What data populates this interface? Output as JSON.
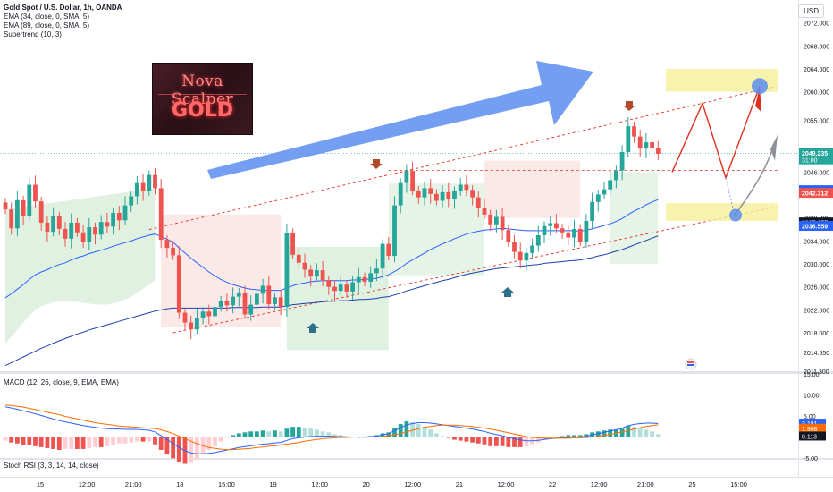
{
  "legend": {
    "symbol": "Gold Spot / U.S. Dollar, 1h, OANDA",
    "ema1": "EMA (34, close, 0, SMA, 5)",
    "ema2": "EMA (89, close, 0, SMA, 5)",
    "supertrend": "Supertrend (10, 3)"
  },
  "macd_label": "MACD (12, 26, close, 9, EMA, EMA)",
  "stoch_label": "Stoch RSI (3, 3, 14, 14, close)",
  "currency": "USD",
  "logo": {
    "line1": "Nova Scalper",
    "line2": "GOLD"
  },
  "colors": {
    "up": "#26a69a",
    "down": "#ef5350",
    "ema_fast": "#2962ff",
    "ema_slow": "#1e40af",
    "supertrend_up": "#c8e6c9",
    "supertrend_down": "#f8d7d3",
    "projection": "#e0301e",
    "arrow": "#5b8def",
    "highlight": "#f5ef9a",
    "signal_up": "#2f6f8a",
    "signal_down": "#b24a2c"
  },
  "chart_data": {
    "type": "candlestick",
    "x_ticks": [
      "15",
      "12:00",
      "21:00",
      "18",
      "15:00",
      "19",
      "12:00",
      "20",
      "12:00",
      "21",
      "12:00",
      "22",
      "12:00",
      "21:00",
      "25",
      "15:00"
    ],
    "y_ticks": [
      2011.3,
      2014.55,
      2018.0,
      2022.0,
      2026.0,
      2030.0,
      2034.0,
      2038.0,
      2042.0,
      2046.0,
      2050.0,
      2055.0,
      2060.0,
      2064.0,
      2068.0,
      2072.0
    ],
    "ylim": [
      2011.3,
      2076.0
    ],
    "price_labels": [
      {
        "value": 2049.235,
        "text": "2049.235",
        "sub": "31:00",
        "color": "#26a69a"
      },
      {
        "value": 2042.775,
        "text": "2042.775",
        "color": "#2962ff"
      },
      {
        "value": 2042.312,
        "text": "2042.312",
        "color": "#ef5350"
      },
      {
        "value": 2037.157,
        "text": "2037.157",
        "color": "#131722"
      },
      {
        "value": 2036.559,
        "text": "2036.559",
        "color": "#2962ff"
      }
    ],
    "closes": [
      2039.5,
      2036.2,
      2041.1,
      2038.4,
      2043.8,
      2040.9,
      2037.2,
      2035.6,
      2038.3,
      2036.1,
      2034.4,
      2037.2,
      2035.5,
      2033.9,
      2036.4,
      2035.1,
      2037.3,
      2036.5,
      2038.9,
      2037.6,
      2040.2,
      2041.8,
      2044.1,
      2042.7,
      2045.5,
      2043.2,
      2034.2,
      2032.8,
      2031.5,
      2021.5,
      2019.8,
      2018.6,
      2020.6,
      2021.7,
      2020.9,
      2022.5,
      2023.6,
      2022.8,
      2024.3,
      2025.0,
      2021.2,
      2022.9,
      2024.8,
      2026.2,
      2023.0,
      2024.2,
      2022.5,
      2035.4,
      2031.6,
      2030.2,
      2029.0,
      2027.8,
      2028.9,
      2027.2,
      2026.0,
      2025.3,
      2026.4,
      2025.2,
      2026.8,
      2027.7,
      2026.9,
      2028.4,
      2029.2,
      2033.5,
      2031.4,
      2040.2,
      2044.1,
      2046.2,
      2042.8,
      2041.6,
      2043.2,
      2042.2,
      2041.0,
      2042.5,
      2041.3,
      2042.7,
      2043.8,
      2042.9,
      2041.6,
      2039.8,
      2038.6,
      2036.9,
      2038.2,
      2035.9,
      2033.8,
      2032.1,
      2030.6,
      2031.9,
      2033.2,
      2035.0,
      2036.6,
      2037.1,
      2036.2,
      2035.5,
      2034.6,
      2036.1,
      2033.9,
      2037.5,
      2040.8,
      2042.1,
      2043.0,
      2044.6,
      2046.3,
      2049.5,
      2054.0,
      2052.2,
      2050.1,
      2051.2,
      2050.2,
      2049.2
    ],
    "ema34": [
      2024.1,
      2024.8,
      2025.6,
      2026.4,
      2027.3,
      2028.1,
      2028.6,
      2029.0,
      2029.5,
      2029.9,
      2030.2,
      2030.7,
      2031.1,
      2031.4,
      2031.8,
      2032.1,
      2032.4,
      2032.7,
      2033.1,
      2033.4,
      2033.7,
      2034.0,
      2034.4,
      2034.7,
      2035.0,
      2035.2,
      2034.8,
      2034.3,
      2033.8,
      2032.8,
      2031.9,
      2031.0,
      2030.2,
      2029.4,
      2028.6,
      2027.9,
      2027.3,
      2026.8,
      2026.4,
      2026.1,
      2025.8,
      2025.6,
      2025.5,
      2025.4,
      2025.4,
      2025.4,
      2025.4,
      2025.8,
      2026.2,
      2026.5,
      2026.7,
      2026.9,
      2027.0,
      2027.1,
      2027.1,
      2027.1,
      2027.1,
      2027.1,
      2027.2,
      2027.2,
      2027.3,
      2027.4,
      2027.5,
      2027.8,
      2028.1,
      2028.7,
      2029.3,
      2030.1,
      2030.7,
      2031.3,
      2031.9,
      2032.5,
      2033.0,
      2033.5,
      2033.9,
      2034.4,
      2034.8,
      2035.2,
      2035.5,
      2035.7,
      2035.9,
      2036.0,
      2036.1,
      2036.2,
      2036.1,
      2036.0,
      2035.9,
      2035.8,
      2035.8,
      2035.8,
      2035.8,
      2035.8,
      2035.8,
      2035.8,
      2035.8,
      2035.8,
      2035.7,
      2035.9,
      2036.1,
      2036.4,
      2036.7,
      2037.0,
      2037.4,
      2037.9,
      2038.6,
      2039.2,
      2039.7,
      2040.3,
      2040.8,
      2041.2
    ],
    "ema89": [
      2012.3,
      2012.8,
      2013.3,
      2013.8,
      2014.3,
      2014.8,
      2015.3,
      2015.7,
      2016.2,
      2016.6,
      2017.0,
      2017.4,
      2017.8,
      2018.1,
      2018.5,
      2018.8,
      2019.1,
      2019.4,
      2019.7,
      2020.0,
      2020.3,
      2020.6,
      2020.9,
      2021.2,
      2021.5,
      2021.8,
      2022.0,
      2022.2,
      2022.3,
      2022.3,
      2022.3,
      2022.3,
      2022.3,
      2022.3,
      2022.3,
      2022.3,
      2022.3,
      2022.3,
      2022.4,
      2022.4,
      2022.4,
      2022.4,
      2022.4,
      2022.5,
      2022.5,
      2022.5,
      2022.5,
      2022.7,
      2022.9,
      2023.0,
      2023.1,
      2023.2,
      2023.3,
      2023.4,
      2023.5,
      2023.5,
      2023.6,
      2023.6,
      2023.7,
      2023.8,
      2023.8,
      2023.9,
      2024.0,
      2024.2,
      2024.3,
      2024.6,
      2024.9,
      2025.3,
      2025.6,
      2025.9,
      2026.2,
      2026.5,
      2026.8,
      2027.1,
      2027.3,
      2027.6,
      2027.9,
      2028.2,
      2028.4,
      2028.6,
      2028.8,
      2029.0,
      2029.2,
      2029.3,
      2029.4,
      2029.5,
      2029.6,
      2029.7,
      2029.8,
      2029.9,
      2030.1,
      2030.2,
      2030.3,
      2030.4,
      2030.5,
      2030.6,
      2030.7,
      2030.9,
      2031.1,
      2031.4,
      2031.6,
      2031.9,
      2032.2,
      2032.5,
      2032.9,
      2033.3,
      2033.7,
      2034.1,
      2034.5,
      2034.9
    ],
    "macd": [
      7.2,
      6.9,
      6.6,
      6.2,
      5.9,
      5.5,
      5.1,
      4.7,
      4.3,
      3.9,
      3.6,
      3.3,
      3.0,
      2.7,
      2.5,
      2.3,
      2.1,
      2.0,
      1.9,
      1.9,
      1.8,
      1.8,
      1.8,
      1.7,
      1.6,
      1.2,
      0.3,
      -0.6,
      -1.5,
      -2.5,
      -3.3,
      -3.8,
      -4.0,
      -4.0,
      -3.9,
      -3.7,
      -3.4,
      -3.1,
      -2.8,
      -2.5,
      -2.3,
      -2.1,
      -1.9,
      -1.7,
      -1.6,
      -1.4,
      -1.3,
      -0.8,
      -0.4,
      -0.2,
      0.0,
      0.1,
      0.2,
      0.2,
      0.2,
      0.1,
      0.1,
      0.0,
      0.0,
      0.0,
      0.0,
      0.1,
      0.2,
      0.5,
      0.8,
      1.5,
      2.2,
      2.9,
      3.2,
      3.4,
      3.4,
      3.3,
      3.1,
      2.9,
      2.7,
      2.5,
      2.3,
      2.1,
      1.9,
      1.6,
      1.3,
      0.9,
      0.6,
      0.3,
      -0.1,
      -0.4,
      -0.7,
      -0.9,
      -0.9,
      -0.8,
      -0.6,
      -0.4,
      -0.3,
      -0.2,
      -0.1,
      0.0,
      0.0,
      0.2,
      0.5,
      0.8,
      1.1,
      1.4,
      1.7,
      2.1,
      2.7,
      3.0,
      3.2,
      3.3,
      3.3,
      3.2
    ],
    "macd_signal": [
      7.6,
      7.5,
      7.3,
      7.1,
      6.8,
      6.5,
      6.2,
      5.9,
      5.6,
      5.3,
      4.9,
      4.6,
      4.3,
      4.0,
      3.7,
      3.4,
      3.2,
      3.0,
      2.8,
      2.6,
      2.5,
      2.4,
      2.3,
      2.2,
      2.1,
      2.0,
      1.7,
      1.3,
      0.8,
      0.2,
      -0.4,
      -1.0,
      -1.6,
      -2.1,
      -2.5,
      -2.7,
      -2.9,
      -3.0,
      -3.0,
      -2.9,
      -2.8,
      -2.7,
      -2.5,
      -2.4,
      -2.2,
      -2.1,
      -1.9,
      -1.7,
      -1.5,
      -1.3,
      -1.0,
      -0.8,
      -0.6,
      -0.4,
      -0.3,
      -0.2,
      -0.1,
      -0.1,
      0.0,
      0.0,
      0.0,
      0.0,
      0.0,
      0.1,
      0.3,
      0.5,
      0.8,
      1.2,
      1.6,
      2.0,
      2.3,
      2.5,
      2.7,
      2.8,
      2.8,
      2.8,
      2.7,
      2.6,
      2.5,
      2.3,
      2.1,
      1.9,
      1.6,
      1.3,
      1.0,
      0.7,
      0.4,
      0.1,
      -0.1,
      -0.2,
      -0.3,
      -0.3,
      -0.3,
      -0.3,
      -0.3,
      -0.2,
      -0.2,
      -0.1,
      0.0,
      0.2,
      0.4,
      0.6,
      0.9,
      1.2,
      1.5,
      1.9,
      2.2,
      2.5,
      2.7,
      2.9
    ],
    "macd_ticks": [
      15.0,
      10.0,
      5.0,
      0.0,
      -5.0
    ],
    "macd_labels": [
      {
        "value": 3.181,
        "text": "3.181",
        "color": "#2962ff"
      },
      {
        "value": 1.968,
        "text": "1.968",
        "color": "#ff6d00"
      },
      {
        "value": 0.113,
        "text": "0.113",
        "color": "#131722"
      }
    ],
    "macd_ylim": [
      -5.0,
      15.0
    ]
  }
}
